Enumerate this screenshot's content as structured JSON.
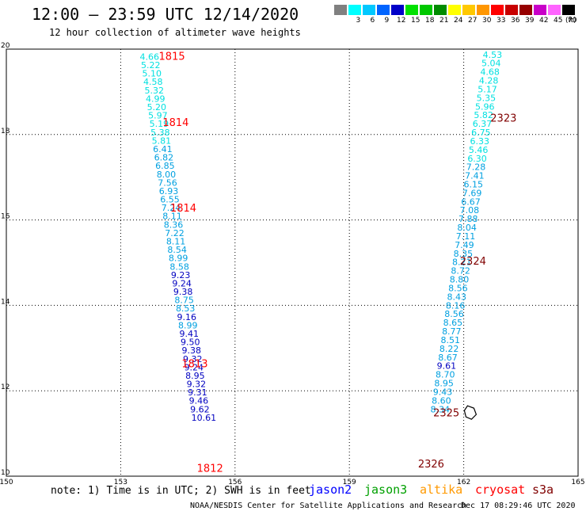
{
  "header": {
    "title": "12:00 — 23:59 UTC 12/14/2020",
    "subtitle": "12 hour collection of altimeter wave heights"
  },
  "legend": {
    "unit": "(ft)",
    "bins": [
      {
        "label": "",
        "color": "#808080"
      },
      {
        "label": "3",
        "color": "#00ffff"
      },
      {
        "label": "6",
        "color": "#00c8ff"
      },
      {
        "label": "9",
        "color": "#0064ff"
      },
      {
        "label": "12",
        "color": "#0000c8"
      },
      {
        "label": "15",
        "color": "#00e100"
      },
      {
        "label": "18",
        "color": "#00c800"
      },
      {
        "label": "21",
        "color": "#008c00"
      },
      {
        "label": "24",
        "color": "#ffff00"
      },
      {
        "label": "27",
        "color": "#ffc800"
      },
      {
        "label": "30",
        "color": "#ff9600"
      },
      {
        "label": "33",
        "color": "#ff0000"
      },
      {
        "label": "36",
        "color": "#c80000"
      },
      {
        "label": "39",
        "color": "#960000"
      },
      {
        "label": "42",
        "color": "#c800c8"
      },
      {
        "label": "45",
        "color": "#ff64ff"
      },
      {
        "label": "70",
        "color": "#000000"
      }
    ]
  },
  "map": {
    "lon_range": [
      150,
      165
    ],
    "lat_range": [
      10,
      20
    ],
    "lon_ticks": [
      "150",
      "153",
      "156",
      "159",
      "162",
      "165"
    ],
    "lat_ticks": [
      "20",
      "18",
      "16",
      "14",
      "12",
      "10"
    ],
    "colors": {
      "cyan": "#00e0e0",
      "lightblue": "#00a0e0",
      "darkblue": "#0000c0",
      "red": "#ff0000",
      "darkred": "#800000"
    },
    "tracks": [
      {
        "lon_start": 153.5,
        "lat_start": 19.75,
        "lon_step": 0.0315,
        "lat_step": -0.1965,
        "values": [
          "4.66",
          "5.22",
          "5.10",
          "4.58",
          "5.32",
          "4.99",
          "5.20",
          "5.97",
          "5.19",
          "5.38",
          "5.81",
          "6.41",
          "6.82",
          "6.85",
          "8.00",
          "7.56",
          "6.93",
          "6.55",
          "7.24",
          "8.11",
          "8.36",
          "7.22",
          "8.11",
          "8.54",
          "8.99",
          "8.58",
          "9.23",
          "9.24",
          "9.38",
          "8.75",
          "8.53",
          "9.16",
          "8.99",
          "9.41",
          "9.50",
          "9.38",
          "9.32",
          "9.24",
          "8.95",
          "9.32",
          "9.31",
          "9.46",
          "9.62",
          "10.61"
        ],
        "colors": [
          "cyan",
          "cyan",
          "cyan",
          "cyan",
          "cyan",
          "cyan",
          "cyan",
          "cyan",
          "cyan",
          "cyan",
          "cyan",
          "lightblue",
          "lightblue",
          "lightblue",
          "lightblue",
          "lightblue",
          "lightblue",
          "lightblue",
          "lightblue",
          "lightblue",
          "lightblue",
          "lightblue",
          "lightblue",
          "lightblue",
          "lightblue",
          "lightblue",
          "darkblue",
          "darkblue",
          "darkblue",
          "lightblue",
          "lightblue",
          "darkblue",
          "lightblue",
          "darkblue",
          "darkblue",
          "darkblue",
          "darkblue",
          "darkblue",
          "darkblue",
          "darkblue",
          "darkblue",
          "darkblue",
          "darkblue",
          "darkblue"
        ]
      },
      {
        "lon_start": 162.5,
        "lat_start": 19.8,
        "lon_step": -0.0335,
        "lat_step": -0.2025,
        "values": [
          "4.53",
          "5.04",
          "4.68",
          "4.28",
          "5.17",
          "5.35",
          "5.96",
          "5.82",
          "6.37",
          "6.75",
          "6.33",
          "5.46",
          "6.30",
          "7.28",
          "7.41",
          "6.15",
          "7.69",
          "6.67",
          "7.08",
          "7.88",
          "8.04",
          "7.11",
          "7.49",
          "8.35",
          "8.21",
          "8.72",
          "8.80",
          "8.56",
          "8.43",
          "8.16",
          "8.56",
          "8.65",
          "8.77",
          "8.51",
          "8.22",
          "8.67",
          "9.61",
          "8.70",
          "8.95",
          "9.43",
          "8.60",
          "8.34"
        ],
        "colors": [
          "cyan",
          "cyan",
          "cyan",
          "cyan",
          "cyan",
          "cyan",
          "cyan",
          "cyan",
          "cyan",
          "cyan",
          "cyan",
          "cyan",
          "cyan",
          "lightblue",
          "lightblue",
          "lightblue",
          "lightblue",
          "lightblue",
          "lightblue",
          "lightblue",
          "lightblue",
          "lightblue",
          "lightblue",
          "lightblue",
          "lightblue",
          "lightblue",
          "lightblue",
          "lightblue",
          "lightblue",
          "lightblue",
          "lightblue",
          "lightblue",
          "lightblue",
          "lightblue",
          "lightblue",
          "lightblue",
          "darkblue",
          "lightblue",
          "lightblue",
          "lightblue",
          "lightblue",
          "lightblue"
        ]
      }
    ],
    "pass_labels": [
      {
        "text": "1815",
        "lon": 154.0,
        "lat": 19.75,
        "color": "red"
      },
      {
        "text": "1814",
        "lon": 154.1,
        "lat": 18.2,
        "color": "red"
      },
      {
        "text": "1814",
        "lon": 154.3,
        "lat": 16.2,
        "color": "red"
      },
      {
        "text": "1813",
        "lon": 154.6,
        "lat": 12.55,
        "color": "red"
      },
      {
        "text": "1812",
        "lon": 155.0,
        "lat": 10.1,
        "color": "red"
      },
      {
        "text": "2323",
        "lon": 162.7,
        "lat": 18.3,
        "color": "darkred"
      },
      {
        "text": "2324",
        "lon": 161.9,
        "lat": 14.95,
        "color": "darkred"
      },
      {
        "text": "2325",
        "lon": 161.2,
        "lat": 11.4,
        "color": "darkred"
      },
      {
        "text": "2326",
        "lon": 160.8,
        "lat": 10.2,
        "color": "darkred"
      }
    ]
  },
  "footer": {
    "note": "note:  1) Time is in UTC;  2) SWH is in feet",
    "satellites": [
      {
        "name": "jason2",
        "color": "#0000ff"
      },
      {
        "name": "jason3",
        "color": "#00a000"
      },
      {
        "name": "altika",
        "color": "#ff9900"
      },
      {
        "name": "cryosat",
        "color": "#ff0000"
      },
      {
        "name": "s3a",
        "color": "#800000"
      }
    ],
    "credit": "NOAA/NESDIS Center for Satellite Applications and Research",
    "timestamp": "Dec 17 08:29:46 UTC 2020"
  }
}
